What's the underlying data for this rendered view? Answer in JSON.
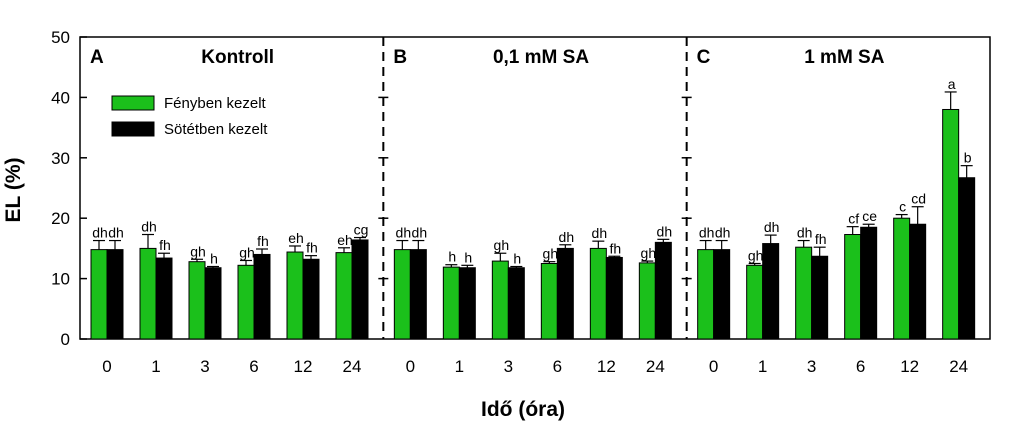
{
  "chart_data": {
    "type": "bar",
    "ylabel": "EL (%)",
    "xlabel": "Idő (óra)",
    "ylim": [
      0,
      50
    ],
    "yticks": [
      0,
      10,
      20,
      30,
      40,
      50
    ],
    "categories": [
      "0",
      "1",
      "3",
      "6",
      "12",
      "24"
    ],
    "legend": {
      "placement": "top-left of panel A",
      "entries": [
        {
          "name": "Fényben kezelt",
          "color": "#1bc01b"
        },
        {
          "name": "Sötétben kezelt",
          "color": "#000000"
        }
      ]
    },
    "panels": [
      {
        "letter": "A",
        "title": "Kontroll",
        "series": [
          {
            "name": "Fényben kezelt",
            "values": [
              14.8,
              15.0,
              12.8,
              12.2,
              14.4,
              14.3
            ],
            "errors": [
              1.5,
              2.3,
              0.4,
              0.8,
              1.0,
              0.8
            ]
          },
          {
            "name": "Sötétben kezelt",
            "values": [
              14.8,
              13.4,
              11.8,
              14.0,
              13.2,
              16.4
            ],
            "errors": [
              1.5,
              0.8,
              0.2,
              0.9,
              0.6,
              0.4
            ]
          }
        ],
        "labels": [
          [
            "dh",
            "dh"
          ],
          [
            "dh",
            "fh"
          ],
          [
            "gh",
            "h"
          ],
          [
            "gh",
            "fh"
          ],
          [
            "eh",
            "fh"
          ],
          [
            "eh",
            "cg"
          ]
        ]
      },
      {
        "letter": "B",
        "title": "0,1 mM SA",
        "series": [
          {
            "name": "Fényben kezelt",
            "values": [
              14.8,
              11.9,
              12.9,
              12.5,
              15.0,
              12.6
            ],
            "errors": [
              1.5,
              0.4,
              1.3,
              0.3,
              1.2,
              0.3
            ]
          },
          {
            "name": "Sötétben kezelt",
            "values": [
              14.8,
              11.8,
              11.8,
              15.0,
              13.5,
              16.0
            ],
            "errors": [
              1.5,
              0.4,
              0.2,
              0.6,
              0.2,
              0.5
            ]
          }
        ],
        "labels": [
          [
            "dh",
            "dh"
          ],
          [
            "h",
            "h"
          ],
          [
            "gh",
            "h"
          ],
          [
            "gh",
            "dh"
          ],
          [
            "dh",
            "fh"
          ],
          [
            "gh",
            "dh"
          ]
        ]
      },
      {
        "letter": "C",
        "title": "1 mM SA",
        "series": [
          {
            "name": "Fényben kezelt",
            "values": [
              14.8,
              12.2,
              15.2,
              17.3,
              20.0,
              38.0
            ],
            "errors": [
              1.5,
              0.3,
              1.1,
              1.3,
              0.6,
              2.9
            ]
          },
          {
            "name": "Sötétben kezelt",
            "values": [
              14.8,
              15.8,
              13.7,
              18.5,
              19.0,
              26.7
            ],
            "errors": [
              1.5,
              1.4,
              1.5,
              0.5,
              2.9,
              2.0
            ]
          }
        ],
        "labels": [
          [
            "dh",
            "dh"
          ],
          [
            "gh",
            "dh"
          ],
          [
            "dh",
            "fh"
          ],
          [
            "cf",
            "ce"
          ],
          [
            "c",
            "cd"
          ],
          [
            "a",
            "b"
          ]
        ]
      }
    ]
  },
  "colors": {
    "light": "#1bc01b",
    "dark": "#000000"
  }
}
